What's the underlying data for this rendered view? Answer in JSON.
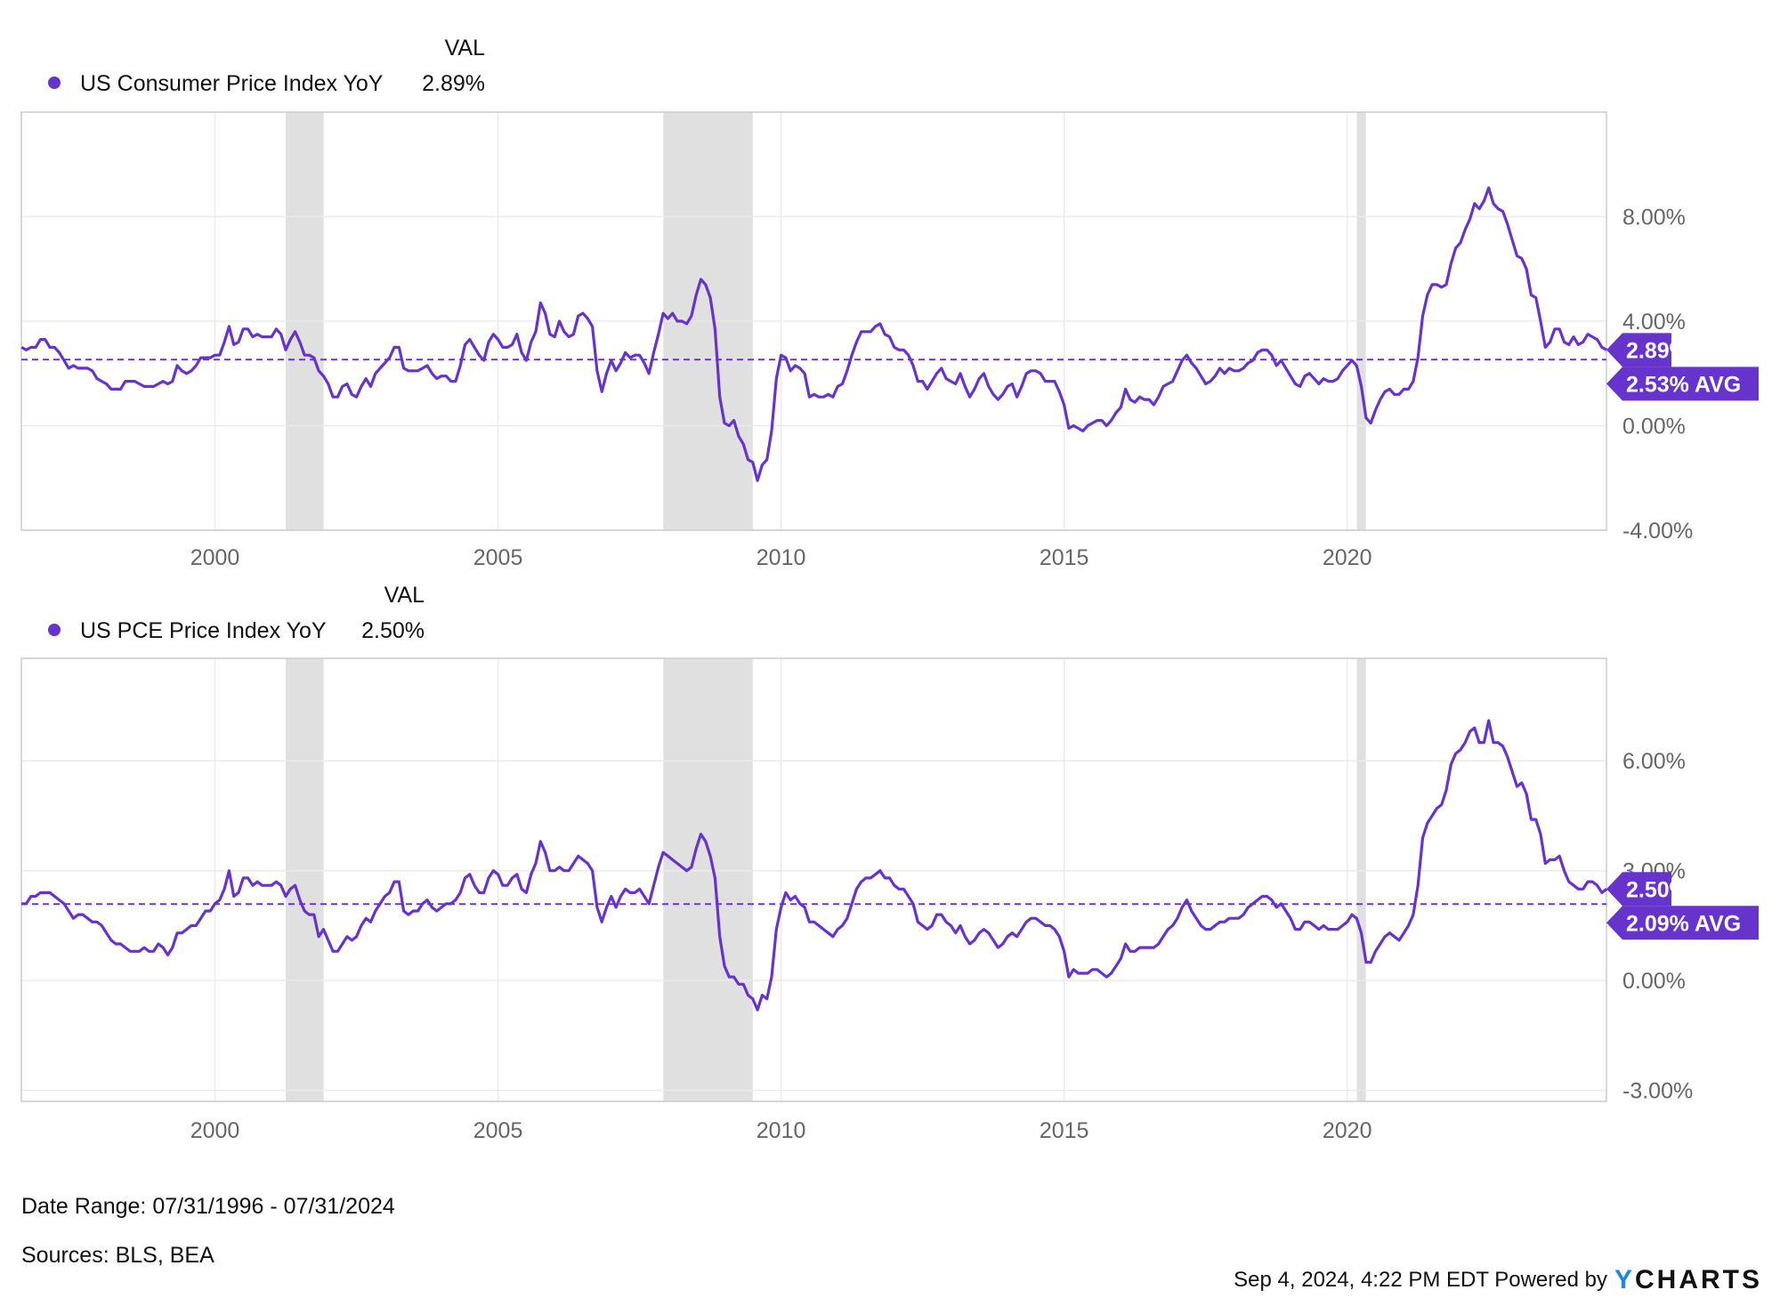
{
  "chart_data": [
    {
      "type": "line",
      "legend_header": "VAL",
      "series": [
        {
          "name": "US Consumer Price Index YoY",
          "last_value": "2.89%",
          "color": "#6633cc",
          "monthly_values_by_year": {
            "1996": [
              3.0,
              2.9,
              3.0,
              3.0,
              3.3,
              3.3
            ],
            "1997": [
              3.0,
              3.0,
              2.8,
              2.5,
              2.2,
              2.3,
              2.2,
              2.2,
              2.2,
              2.1,
              1.8,
              1.7
            ],
            "1998": [
              1.6,
              1.4,
              1.4,
              1.4,
              1.7,
              1.7,
              1.7,
              1.6,
              1.5,
              1.5,
              1.5,
              1.6
            ],
            "1999": [
              1.7,
              1.6,
              1.7,
              2.3,
              2.1,
              2.0,
              2.1,
              2.3,
              2.6,
              2.6,
              2.6,
              2.7
            ],
            "2000": [
              2.7,
              3.2,
              3.8,
              3.1,
              3.2,
              3.7,
              3.7,
              3.4,
              3.5,
              3.4,
              3.4,
              3.4
            ],
            "2001": [
              3.7,
              3.5,
              2.9,
              3.3,
              3.6,
              3.2,
              2.7,
              2.7,
              2.6,
              2.1,
              1.9,
              1.6
            ],
            "2002": [
              1.1,
              1.1,
              1.5,
              1.6,
              1.2,
              1.1,
              1.5,
              1.8,
              1.5,
              2.0,
              2.2,
              2.4
            ],
            "2003": [
              2.6,
              3.0,
              3.0,
              2.2,
              2.1,
              2.1,
              2.1,
              2.2,
              2.3,
              2.0,
              1.8,
              1.9
            ],
            "2004": [
              1.9,
              1.7,
              1.7,
              2.3,
              3.1,
              3.3,
              3.0,
              2.7,
              2.5,
              3.2,
              3.5,
              3.3
            ],
            "2005": [
              3.0,
              3.0,
              3.1,
              3.5,
              2.8,
              2.5,
              3.2,
              3.6,
              4.7,
              4.3,
              3.5,
              3.4
            ],
            "2006": [
              4.0,
              3.6,
              3.4,
              3.5,
              4.2,
              4.3,
              4.1,
              3.8,
              2.1,
              1.3,
              2.0,
              2.5
            ],
            "2007": [
              2.1,
              2.4,
              2.8,
              2.6,
              2.7,
              2.7,
              2.4,
              2.0,
              2.8,
              3.5,
              4.3,
              4.1
            ],
            "2008": [
              4.3,
              4.0,
              4.0,
              3.9,
              4.2,
              5.0,
              5.6,
              5.4,
              4.9,
              3.7,
              1.1,
              0.1
            ],
            "2009": [
              0.0,
              0.2,
              -0.4,
              -0.7,
              -1.3,
              -1.4,
              -2.1,
              -1.5,
              -1.3,
              -0.2,
              1.8,
              2.7
            ],
            "2010": [
              2.6,
              2.1,
              2.3,
              2.2,
              2.0,
              1.1,
              1.2,
              1.1,
              1.1,
              1.2,
              1.1,
              1.5
            ],
            "2011": [
              1.6,
              2.1,
              2.7,
              3.2,
              3.6,
              3.6,
              3.6,
              3.8,
              3.9,
              3.5,
              3.4,
              3.0
            ],
            "2012": [
              2.9,
              2.9,
              2.7,
              2.3,
              1.7,
              1.7,
              1.4,
              1.7,
              2.0,
              2.2,
              1.8,
              1.7
            ],
            "2013": [
              1.6,
              2.0,
              1.5,
              1.1,
              1.4,
              1.8,
              2.0,
              1.5,
              1.2,
              1.0,
              1.2,
              1.5
            ],
            "2014": [
              1.6,
              1.1,
              1.5,
              2.0,
              2.1,
              2.1,
              2.0,
              1.7,
              1.7,
              1.7,
              1.3,
              0.8
            ],
            "2015": [
              -0.1,
              0.0,
              -0.1,
              -0.2,
              0.0,
              0.1,
              0.2,
              0.2,
              0.0,
              0.2,
              0.5,
              0.7
            ],
            "2016": [
              1.4,
              1.0,
              0.9,
              1.1,
              1.0,
              1.0,
              0.8,
              1.1,
              1.5,
              1.6,
              1.7,
              2.1
            ],
            "2017": [
              2.5,
              2.7,
              2.4,
              2.2,
              1.9,
              1.6,
              1.7,
              1.9,
              2.2,
              2.0,
              2.2,
              2.1
            ],
            "2018": [
              2.1,
              2.2,
              2.4,
              2.5,
              2.8,
              2.9,
              2.9,
              2.7,
              2.3,
              2.5,
              2.2,
              1.9
            ],
            "2019": [
              1.6,
              1.5,
              1.9,
              2.0,
              1.8,
              1.6,
              1.8,
              1.7,
              1.7,
              1.8,
              2.1,
              2.3
            ],
            "2020": [
              2.5,
              2.3,
              1.5,
              0.3,
              0.1,
              0.6,
              1.0,
              1.3,
              1.4,
              1.2,
              1.2,
              1.4
            ],
            "2021": [
              1.4,
              1.7,
              2.6,
              4.2,
              5.0,
              5.4,
              5.4,
              5.3,
              5.4,
              6.2,
              6.8,
              7.0
            ],
            "2022": [
              7.5,
              7.9,
              8.5,
              8.3,
              8.6,
              9.1,
              8.5,
              8.3,
              8.2,
              7.7,
              7.1,
              6.5
            ],
            "2023": [
              6.4,
              6.0,
              5.0,
              4.9,
              4.0,
              3.0,
              3.2,
              3.7,
              3.7,
              3.2,
              3.1,
              3.4
            ],
            "2024": [
              3.1,
              3.2,
              3.5,
              3.4,
              3.3,
              3.0,
              2.9
            ]
          }
        }
      ],
      "average": 2.53,
      "last_label": "2.89%",
      "avg_label": "2.53% AVG",
      "ylim": [
        -4,
        12
      ],
      "yticks": [
        -4,
        0,
        4,
        8
      ],
      "ytick_labels": [
        "-4.00%",
        "0.00%",
        "4.00%",
        "8.00%"
      ],
      "xlim": [
        1996.58,
        2024.58
      ],
      "xticks": [
        2000,
        2005,
        2010,
        2015,
        2020
      ],
      "xtick_labels": [
        "2000",
        "2005",
        "2010",
        "2015",
        "2020"
      ],
      "recessions": [
        [
          2001.25,
          2001.92
        ],
        [
          2007.92,
          2009.5
        ],
        [
          2020.17,
          2020.33
        ]
      ],
      "grid": true
    },
    {
      "type": "line",
      "legend_header": "VAL",
      "series": [
        {
          "name": "US PCE Price Index YoY",
          "last_value": "2.50%",
          "color": "#6633cc",
          "monthly_values_by_year": {
            "1996": [
              2.1,
              2.1,
              2.3,
              2.3,
              2.4,
              2.4
            ],
            "1997": [
              2.4,
              2.3,
              2.2,
              2.1,
              1.9,
              1.7,
              1.8,
              1.8,
              1.7,
              1.6,
              1.6,
              1.5
            ],
            "1998": [
              1.3,
              1.1,
              1.0,
              1.0,
              0.9,
              0.8,
              0.8,
              0.8,
              0.9,
              0.8,
              0.8,
              1.0
            ],
            "1999": [
              0.9,
              0.7,
              0.9,
              1.3,
              1.3,
              1.4,
              1.5,
              1.5,
              1.7,
              1.9,
              1.9,
              2.1
            ],
            "2000": [
              2.2,
              2.5,
              3.0,
              2.3,
              2.4,
              2.8,
              2.8,
              2.6,
              2.7,
              2.6,
              2.6,
              2.6
            ],
            "2001": [
              2.7,
              2.6,
              2.3,
              2.5,
              2.6,
              2.2,
              1.9,
              1.8,
              1.8,
              1.2,
              1.4,
              1.1
            ],
            "2002": [
              0.8,
              0.8,
              1.0,
              1.2,
              1.1,
              1.2,
              1.5,
              1.7,
              1.6,
              1.9,
              2.1,
              2.3
            ],
            "2003": [
              2.4,
              2.7,
              2.7,
              1.9,
              1.8,
              1.9,
              1.9,
              2.1,
              2.2,
              2.0,
              1.9,
              2.0
            ],
            "2004": [
              2.1,
              2.1,
              2.2,
              2.4,
              2.8,
              2.9,
              2.6,
              2.4,
              2.4,
              2.8,
              3.0,
              2.9
            ],
            "2005": [
              2.6,
              2.6,
              2.8,
              2.9,
              2.5,
              2.4,
              2.9,
              3.2,
              3.8,
              3.5,
              3.0,
              3.0
            ],
            "2006": [
              3.1,
              3.0,
              3.0,
              3.2,
              3.4,
              3.3,
              3.2,
              3.0,
              2.0,
              1.6,
              2.0,
              2.3
            ],
            "2007": [
              2.0,
              2.3,
              2.5,
              2.4,
              2.4,
              2.5,
              2.3,
              2.1,
              2.6,
              3.1,
              3.5,
              3.4
            ],
            "2008": [
              3.3,
              3.2,
              3.1,
              3.0,
              3.1,
              3.6,
              4.0,
              3.8,
              3.4,
              2.8,
              1.2,
              0.4
            ],
            "2009": [
              0.1,
              0.1,
              -0.1,
              -0.1,
              -0.4,
              -0.5,
              -0.8,
              -0.4,
              -0.5,
              0.1,
              1.4,
              2.0
            ],
            "2010": [
              2.4,
              2.2,
              2.3,
              2.1,
              2.0,
              1.6,
              1.6,
              1.5,
              1.4,
              1.3,
              1.2,
              1.4
            ],
            "2011": [
              1.5,
              1.7,
              2.1,
              2.5,
              2.7,
              2.8,
              2.8,
              2.9,
              3.0,
              2.8,
              2.8,
              2.6
            ],
            "2012": [
              2.5,
              2.5,
              2.3,
              2.1,
              1.6,
              1.5,
              1.4,
              1.5,
              1.8,
              1.8,
              1.6,
              1.5
            ],
            "2013": [
              1.3,
              1.5,
              1.2,
              1.0,
              1.1,
              1.3,
              1.4,
              1.3,
              1.1,
              0.9,
              1.0,
              1.2
            ],
            "2014": [
              1.3,
              1.2,
              1.4,
              1.6,
              1.7,
              1.7,
              1.6,
              1.5,
              1.5,
              1.4,
              1.2,
              0.8
            ],
            "2015": [
              0.1,
              0.3,
              0.2,
              0.2,
              0.2,
              0.3,
              0.3,
              0.2,
              0.1,
              0.2,
              0.4,
              0.6
            ],
            "2016": [
              1.0,
              0.8,
              0.8,
              0.9,
              0.9,
              0.9,
              0.9,
              1.0,
              1.2,
              1.4,
              1.5,
              1.7
            ],
            "2017": [
              2.0,
              2.2,
              1.9,
              1.7,
              1.5,
              1.4,
              1.4,
              1.5,
              1.6,
              1.6,
              1.7,
              1.7
            ],
            "2018": [
              1.7,
              1.8,
              2.0,
              2.1,
              2.2,
              2.3,
              2.3,
              2.2,
              2.0,
              2.1,
              1.9,
              1.7
            ],
            "2019": [
              1.4,
              1.4,
              1.6,
              1.6,
              1.5,
              1.4,
              1.5,
              1.4,
              1.4,
              1.4,
              1.5,
              1.6
            ],
            "2020": [
              1.8,
              1.7,
              1.3,
              0.5,
              0.5,
              0.8,
              1.0,
              1.2,
              1.3,
              1.2,
              1.1,
              1.3
            ],
            "2021": [
              1.5,
              1.8,
              2.6,
              3.9,
              4.3,
              4.5,
              4.7,
              4.8,
              5.2,
              5.9,
              6.2,
              6.3
            ],
            "2022": [
              6.5,
              6.8,
              6.9,
              6.5,
              6.5,
              7.1,
              6.5,
              6.5,
              6.4,
              6.1,
              5.7,
              5.3
            ],
            "2023": [
              5.4,
              5.1,
              4.4,
              4.4,
              4.0,
              3.2,
              3.3,
              3.3,
              3.4,
              3.0,
              2.7,
              2.6
            ],
            "2024": [
              2.5,
              2.5,
              2.7,
              2.7,
              2.6,
              2.4,
              2.5
            ]
          }
        }
      ],
      "average": 2.09,
      "last_label": "2.50%",
      "avg_label": "2.09% AVG",
      "ylim": [
        -3.3,
        8.8
      ],
      "yticks": [
        -3,
        0,
        3,
        6
      ],
      "ytick_labels": [
        "-3.00%",
        "0.00%",
        "3.00%",
        "6.00%"
      ],
      "xlim": [
        1996.58,
        2024.58
      ],
      "xticks": [
        2000,
        2005,
        2010,
        2015,
        2020
      ],
      "xtick_labels": [
        "2000",
        "2005",
        "2010",
        "2015",
        "2020"
      ],
      "recessions": [
        [
          2001.25,
          2001.92
        ],
        [
          2007.92,
          2009.5
        ],
        [
          2020.17,
          2020.33
        ]
      ],
      "grid": true
    }
  ],
  "footer": {
    "date_range": "Date Range: 07/31/1996 - 07/31/2024",
    "sources": "Sources: BLS, BEA",
    "timestamp": "Sep 4, 2024, 4:22 PM EDT Powered by",
    "logo": "YCHARTS",
    "logo_accent": "Y",
    "logo_rest": "CHARTS"
  },
  "colors": {
    "series": "#6633cc",
    "recession": "#e0e0e0",
    "grid": "#ebebeb",
    "axis_text": "#666666",
    "logo_accent": "#1e88e5"
  }
}
